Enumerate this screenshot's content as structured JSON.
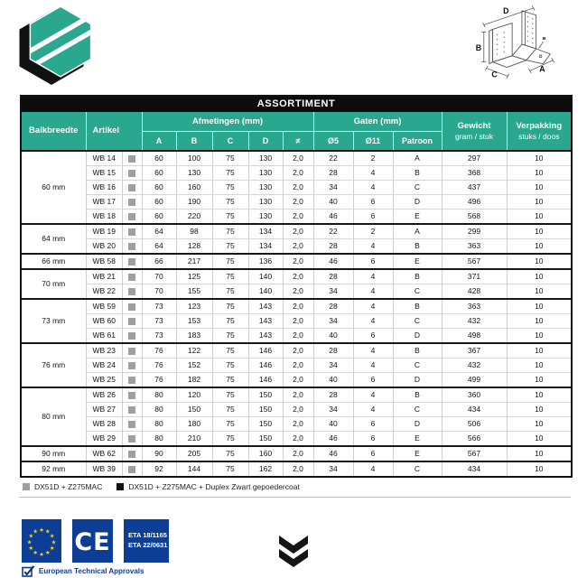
{
  "logo": {
    "name": "hexagon-brand-logo"
  },
  "drawing": {
    "labels": {
      "d": "D",
      "b": "B",
      "c": "C",
      "a": "A",
      "dia": "ø"
    }
  },
  "table": {
    "title": "ASSORTIMENT",
    "headers": {
      "balkbreedte": "Balkbreedte",
      "artikel": "Artikel",
      "afmetingen": "Afmetingen (mm)",
      "gaten": "Gaten (mm)",
      "gewicht": "Gewicht",
      "gewicht_sub": "gram / stuk",
      "verpakking": "Verpakking",
      "verpakking_sub": "stuks / doos",
      "sub": [
        "A",
        "B",
        "C",
        "D",
        "≠",
        "Ø5",
        "Ø11",
        "Patroon"
      ]
    },
    "groups": [
      {
        "balkbreedte": "60 mm",
        "rows": [
          {
            "artikel": "WB 14",
            "swatch": "gray",
            "values": [
              "60",
              "100",
              "75",
              "130",
              "2,0",
              "22",
              "2",
              "A",
              "297",
              "10"
            ]
          },
          {
            "artikel": "WB 15",
            "swatch": "gray",
            "values": [
              "60",
              "130",
              "75",
              "130",
              "2,0",
              "28",
              "4",
              "B",
              "368",
              "10"
            ]
          },
          {
            "artikel": "WB 16",
            "swatch": "gray",
            "values": [
              "60",
              "160",
              "75",
              "130",
              "2,0",
              "34",
              "4",
              "C",
              "437",
              "10"
            ]
          },
          {
            "artikel": "WB 17",
            "swatch": "gray",
            "values": [
              "60",
              "190",
              "75",
              "130",
              "2,0",
              "40",
              "6",
              "D",
              "496",
              "10"
            ]
          },
          {
            "artikel": "WB 18",
            "swatch": "gray",
            "values": [
              "60",
              "220",
              "75",
              "130",
              "2,0",
              "46",
              "6",
              "E",
              "568",
              "10"
            ]
          }
        ]
      },
      {
        "balkbreedte": "64 mm",
        "rows": [
          {
            "artikel": "WB 19",
            "swatch": "gray",
            "values": [
              "64",
              "98",
              "75",
              "134",
              "2,0",
              "22",
              "2",
              "A",
              "299",
              "10"
            ]
          },
          {
            "artikel": "WB 20",
            "swatch": "gray",
            "values": [
              "64",
              "128",
              "75",
              "134",
              "2,0",
              "28",
              "4",
              "B",
              "363",
              "10"
            ]
          }
        ]
      },
      {
        "balkbreedte": "66 mm",
        "rows": [
          {
            "artikel": "WB 58",
            "swatch": "gray",
            "values": [
              "66",
              "217",
              "75",
              "136",
              "2,0",
              "46",
              "6",
              "E",
              "567",
              "10"
            ]
          }
        ]
      },
      {
        "balkbreedte": "70 mm",
        "rows": [
          {
            "artikel": "WB 21",
            "swatch": "gray",
            "values": [
              "70",
              "125",
              "75",
              "140",
              "2,0",
              "28",
              "4",
              "B",
              "371",
              "10"
            ]
          },
          {
            "artikel": "WB 22",
            "swatch": "gray",
            "values": [
              "70",
              "155",
              "75",
              "140",
              "2,0",
              "34",
              "4",
              "C",
              "428",
              "10"
            ]
          }
        ]
      },
      {
        "balkbreedte": "73 mm",
        "rows": [
          {
            "artikel": "WB 59",
            "swatch": "gray",
            "values": [
              "73",
              "123",
              "75",
              "143",
              "2,0",
              "28",
              "4",
              "B",
              "363",
              "10"
            ]
          },
          {
            "artikel": "WB 60",
            "swatch": "gray",
            "values": [
              "73",
              "153",
              "75",
              "143",
              "2,0",
              "34",
              "4",
              "C",
              "432",
              "10"
            ]
          },
          {
            "artikel": "WB 61",
            "swatch": "gray",
            "values": [
              "73",
              "183",
              "75",
              "143",
              "2,0",
              "40",
              "6",
              "D",
              "498",
              "10"
            ]
          }
        ]
      },
      {
        "balkbreedte": "76 mm",
        "rows": [
          {
            "artikel": "WB 23",
            "swatch": "gray",
            "values": [
              "76",
              "122",
              "75",
              "146",
              "2,0",
              "28",
              "4",
              "B",
              "367",
              "10"
            ]
          },
          {
            "artikel": "WB 24",
            "swatch": "gray",
            "values": [
              "76",
              "152",
              "75",
              "146",
              "2,0",
              "34",
              "4",
              "C",
              "432",
              "10"
            ]
          },
          {
            "artikel": "WB 25",
            "swatch": "gray",
            "values": [
              "76",
              "182",
              "75",
              "146",
              "2,0",
              "40",
              "6",
              "D",
              "499",
              "10"
            ]
          }
        ]
      },
      {
        "balkbreedte": "80 mm",
        "rows": [
          {
            "artikel": "WB 26",
            "swatch": "gray",
            "values": [
              "80",
              "120",
              "75",
              "150",
              "2,0",
              "28",
              "4",
              "B",
              "360",
              "10"
            ]
          },
          {
            "artikel": "WB 27",
            "swatch": "gray",
            "values": [
              "80",
              "150",
              "75",
              "150",
              "2,0",
              "34",
              "4",
              "C",
              "434",
              "10"
            ]
          },
          {
            "artikel": "WB 28",
            "swatch": "gray",
            "values": [
              "80",
              "180",
              "75",
              "150",
              "2,0",
              "40",
              "6",
              "D",
              "506",
              "10"
            ]
          },
          {
            "artikel": "WB 29",
            "swatch": "gray",
            "values": [
              "80",
              "210",
              "75",
              "150",
              "2,0",
              "46",
              "6",
              "E",
              "566",
              "10"
            ]
          }
        ]
      },
      {
        "balkbreedte": "90 mm",
        "rows": [
          {
            "artikel": "WB 62",
            "swatch": "gray",
            "values": [
              "90",
              "205",
              "75",
              "160",
              "2,0",
              "46",
              "6",
              "E",
              "567",
              "10"
            ]
          }
        ]
      },
      {
        "balkbreedte": "92 mm",
        "rows": [
          {
            "artikel": "WB 39",
            "swatch": "gray",
            "values": [
              "92",
              "144",
              "75",
              "162",
              "2,0",
              "34",
              "4",
              "C",
              "434",
              "10"
            ]
          }
        ]
      }
    ],
    "legend": [
      {
        "swatch": "gray",
        "label": "DX51D + Z275MAC"
      },
      {
        "swatch": "black",
        "label": "DX51D + Z275MAC + Duplex Zwart gepoedercoat"
      }
    ]
  },
  "footer": {
    "ce_label": "CE",
    "eta_lines": [
      "ETA 18/1165",
      "ETA 22/0631"
    ],
    "approvals_label": "European Technical Approvals"
  },
  "colors": {
    "teal": "#2aa78f",
    "blue": "#0b3e94",
    "star_yellow": "#f7d117",
    "swatch_gray": "#9da0a3",
    "swatch_black": "#111111"
  }
}
